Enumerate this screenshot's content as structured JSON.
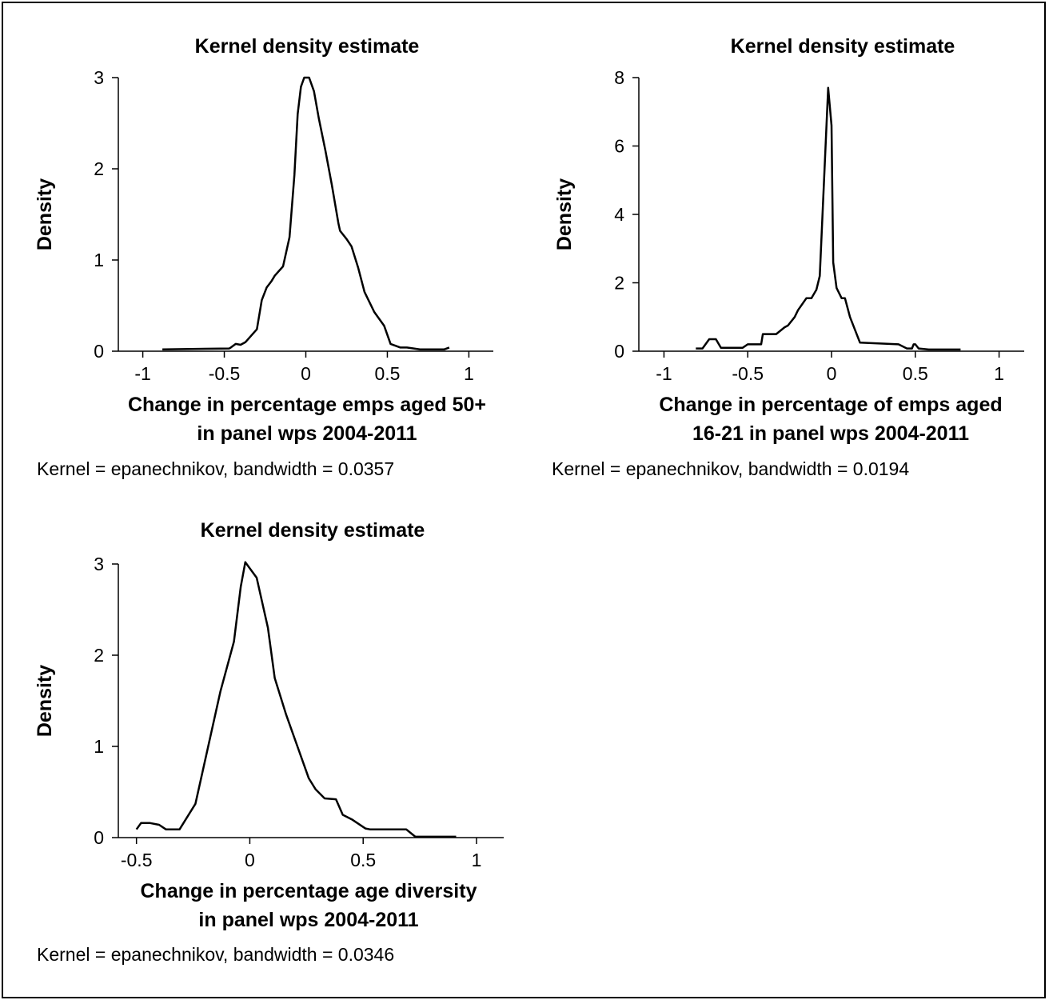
{
  "chart_data": [
    {
      "type": "line",
      "title": "Kernel density estimate",
      "xlabel": [
        "Change in percentage emps aged 50+",
        "in panel wps 2004-2011"
      ],
      "ylabel": "Density",
      "note": "Kernel = epanechnikov, bandwidth = 0.0357",
      "xlim": [
        -1.15,
        1.15
      ],
      "ylim": [
        0,
        3
      ],
      "xticks": [
        -1,
        -0.5,
        0,
        0.5,
        1
      ],
      "xtick_labels": [
        "-1",
        "-0.5",
        "0",
        "0.5",
        "1"
      ],
      "yticks": [
        0,
        1,
        2,
        3
      ],
      "ytick_labels": [
        "0",
        "1",
        "2",
        "3"
      ],
      "series": [
        {
          "x": [
            -0.88,
            -0.47,
            -0.46,
            -0.43,
            -0.4,
            -0.37,
            -0.3,
            -0.27,
            -0.24,
            -0.21,
            -0.19,
            -0.14,
            -0.1,
            -0.07,
            -0.05,
            -0.03,
            -0.01,
            0.02,
            0.05,
            0.08,
            0.12,
            0.16,
            0.2,
            0.21,
            0.25,
            0.28,
            0.32,
            0.36,
            0.42,
            0.48,
            0.52,
            0.58,
            0.62,
            0.7,
            0.76,
            0.8,
            0.85,
            0.88
          ],
          "y": [
            0.02,
            0.03,
            0.04,
            0.08,
            0.07,
            0.1,
            0.24,
            0.56,
            0.7,
            0.77,
            0.83,
            0.93,
            1.25,
            1.93,
            2.6,
            2.9,
            3.0,
            3.0,
            2.85,
            2.55,
            2.2,
            1.82,
            1.4,
            1.32,
            1.23,
            1.15,
            0.92,
            0.65,
            0.43,
            0.28,
            0.08,
            0.04,
            0.04,
            0.02,
            0.02,
            0.02,
            0.02,
            0.04
          ]
        }
      ]
    },
    {
      "type": "line",
      "title": "Kernel density estimate",
      "xlabel": [
        "Change in percentage of emps aged",
        "16-21 in panel wps 2004-2011"
      ],
      "ylabel": "Density",
      "note": "Kernel = epanechnikov, bandwidth = 0.0194",
      "xlim": [
        -1.15,
        1.15
      ],
      "ylim": [
        0,
        8
      ],
      "xticks": [
        -1,
        -0.5,
        0,
        0.5,
        1
      ],
      "xtick_labels": [
        "-1",
        "-0.5",
        "0",
        "0.5",
        "1"
      ],
      "yticks": [
        0,
        2,
        4,
        6,
        8
      ],
      "ytick_labels": [
        "0",
        "2",
        "4",
        "6",
        "8"
      ],
      "series": [
        {
          "x": [
            -0.81,
            -0.77,
            -0.73,
            -0.69,
            -0.66,
            -0.53,
            -0.5,
            -0.42,
            -0.41,
            -0.33,
            -0.28,
            -0.26,
            -0.22,
            -0.2,
            -0.15,
            -0.12,
            -0.09,
            -0.07,
            -0.04,
            -0.02,
            0.0,
            0.01,
            0.03,
            0.06,
            0.08,
            0.11,
            0.17,
            0.4,
            0.45,
            0.48,
            0.49,
            0.5,
            0.52,
            0.58,
            0.77
          ],
          "y": [
            0.08,
            0.08,
            0.35,
            0.35,
            0.1,
            0.1,
            0.2,
            0.2,
            0.5,
            0.5,
            0.7,
            0.75,
            1.0,
            1.2,
            1.55,
            1.55,
            1.8,
            2.2,
            5.5,
            7.7,
            6.6,
            2.6,
            1.85,
            1.55,
            1.55,
            1.0,
            0.25,
            0.2,
            0.08,
            0.08,
            0.2,
            0.2,
            0.08,
            0.05,
            0.05
          ]
        }
      ]
    },
    {
      "type": "line",
      "title": "Kernel density estimate",
      "xlabel": [
        "Change in percentage age diversity",
        "in panel wps 2004-2011"
      ],
      "ylabel": "Density",
      "note": "Kernel = epanechnikov, bandwidth = 0.0346",
      "xlim": [
        -0.58,
        1.12
      ],
      "ylim": [
        0,
        3
      ],
      "xticks": [
        -0.5,
        0,
        0.5,
        1
      ],
      "xtick_labels": [
        "-0.5",
        "0",
        "0.5",
        "1"
      ],
      "yticks": [
        0,
        1,
        2,
        3
      ],
      "ytick_labels": [
        "0",
        "1",
        "2",
        "3"
      ],
      "series": [
        {
          "x": [
            -0.5,
            -0.48,
            -0.44,
            -0.4,
            -0.37,
            -0.31,
            -0.24,
            -0.17,
            -0.13,
            -0.07,
            -0.04,
            -0.02,
            0.03,
            0.08,
            0.11,
            0.16,
            0.21,
            0.26,
            0.29,
            0.33,
            0.38,
            0.41,
            0.45,
            0.51,
            0.53,
            0.65,
            0.69,
            0.73,
            0.91
          ],
          "y": [
            0.09,
            0.16,
            0.16,
            0.14,
            0.09,
            0.09,
            0.37,
            1.15,
            1.6,
            2.15,
            2.75,
            3.02,
            2.85,
            2.3,
            1.75,
            1.35,
            1.0,
            0.65,
            0.53,
            0.43,
            0.42,
            0.25,
            0.2,
            0.1,
            0.09,
            0.09,
            0.09,
            0.01,
            0.01
          ]
        }
      ]
    }
  ]
}
